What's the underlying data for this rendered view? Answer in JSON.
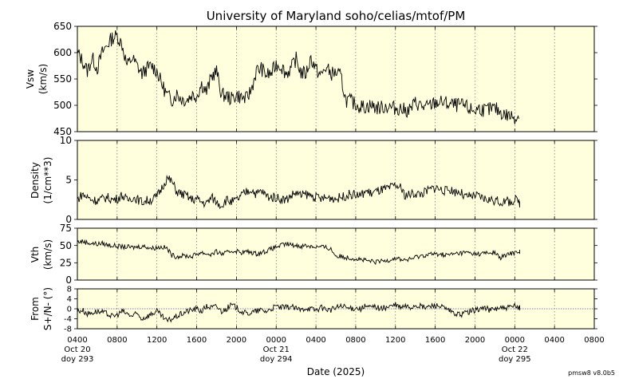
{
  "title": "University of Maryland  soho/celias/mtof/PM",
  "xlabel": "Date (2025)",
  "version": "pmsw8 v8.0b5",
  "colors": {
    "panel_bg": "#ffffdd",
    "line": "#000000",
    "grid": "#555555"
  },
  "x_ticks": [
    "0400",
    "0800",
    "1200",
    "1600",
    "2000",
    "0000",
    "0400",
    "0800",
    "1200",
    "1600",
    "2000",
    "0000",
    "0400",
    "0800"
  ],
  "day_labels": [
    {
      "tick": 0,
      "date": "Oct 20",
      "doy": "doy 293"
    },
    {
      "tick": 5,
      "date": "Oct 21",
      "doy": "doy 294"
    },
    {
      "tick": 11,
      "date": "Oct 22",
      "doy": "doy 295"
    }
  ],
  "chart_data": [
    {
      "type": "line",
      "ylabel": "Vsw",
      "yunit": "(km/s)",
      "ylim": [
        450,
        650
      ],
      "yticks": [
        "450",
        "500",
        "550",
        "600",
        "650"
      ],
      "x_range_hours": [
        4,
        56
      ],
      "series": [
        {
          "x": [
            4,
            4.5,
            5,
            5.5,
            6,
            6.5,
            7,
            7.5,
            8,
            8.5,
            9,
            9.5,
            10,
            10.5,
            11,
            11.5,
            12,
            12.5,
            13,
            13.5,
            14,
            14.5,
            15,
            15.5,
            16,
            16.5,
            17,
            17.5,
            18,
            18.5,
            19,
            19.5,
            20,
            20.5,
            21,
            21.5,
            22,
            22.5,
            23,
            23.5,
            24,
            24.5,
            25,
            25.5,
            26,
            26.5,
            27,
            27.5,
            28,
            28.5,
            29,
            29.5,
            30,
            30.5,
            31,
            31.5,
            32,
            32.5,
            33,
            33.5,
            34,
            34.5,
            35,
            35.5,
            36,
            36.5,
            37,
            37.5,
            38,
            38.5,
            39,
            39.5,
            40,
            40.5,
            41,
            41.5,
            42,
            42.5,
            43,
            43.5,
            44,
            44.5,
            45,
            45.5,
            46,
            46.5,
            47,
            47.5,
            48,
            48.5,
            49,
            49.5,
            50,
            50.5,
            51,
            51.5,
            52,
            52.5,
            53,
            53.5,
            54,
            54.5,
            55,
            55.5,
            56,
            56.5,
            57,
            57.5,
            58,
            58.5,
            59
          ],
          "y": [
            600,
            585,
            565,
            590,
            570,
            600,
            615,
            628,
            632,
            615,
            575,
            590,
            575,
            560,
            570,
            575,
            565,
            540,
            520,
            510,
            522,
            512,
            510,
            520,
            518,
            540,
            525,
            555,
            565,
            520,
            518,
            512,
            520,
            515,
            512,
            530,
            565,
            570,
            558,
            560,
            578,
            575,
            560,
            570,
            588,
            562,
            560,
            590,
            568,
            556,
            572,
            560,
            562,
            555,
            510,
            508,
            502,
            498,
            497,
            500,
            496,
            495,
            498,
            496,
            495,
            494,
            490,
            492,
            505,
            500,
            495,
            500,
            505,
            506,
            504,
            502,
            500,
            500,
            498,
            492,
            490,
            495,
            490,
            492,
            494,
            488,
            482,
            480,
            478,
            null,
            null,
            null,
            null,
            null,
            null,
            null,
            null,
            null,
            null,
            null,
            null,
            null,
            null,
            null,
            null,
            null,
            null,
            null,
            null,
            null,
            null
          ]
        }
      ]
    },
    {
      "type": "line",
      "ylabel": "Density",
      "yunit": "(1/cm**3)",
      "ylim": [
        0,
        10
      ],
      "yticks": [
        "0",
        "5",
        "10"
      ],
      "x_range_hours": [
        4,
        56
      ],
      "series": [
        {
          "x": [
            4,
            4.5,
            5,
            5.5,
            6,
            6.5,
            7,
            7.5,
            8,
            8.5,
            9,
            9.5,
            10,
            10.5,
            11,
            11.5,
            12,
            12.5,
            13,
            13.5,
            14,
            14.5,
            15,
            15.5,
            16,
            16.5,
            17,
            17.5,
            18,
            18.5,
            19,
            19.5,
            20,
            20.5,
            21,
            21.5,
            22,
            22.5,
            23,
            23.5,
            24,
            24.5,
            25,
            25.5,
            26,
            26.5,
            27,
            27.5,
            28,
            28.5,
            29,
            29.5,
            30,
            30.5,
            31,
            31.5,
            32,
            32.5,
            33,
            33.5,
            34,
            34.5,
            35,
            35.5,
            36,
            36.5,
            37,
            37.5,
            38,
            38.5,
            39,
            39.5,
            40,
            40.5,
            41,
            41.5,
            42,
            42.5,
            43,
            43.5,
            44,
            44.5,
            45,
            45.5,
            46,
            46.5,
            47,
            47.5,
            48,
            48.5
          ],
          "y": [
            2.5,
            3.2,
            2.8,
            2.5,
            2.4,
            2.6,
            2.8,
            2.5,
            2.6,
            3.1,
            2.4,
            2.8,
            2.6,
            2.2,
            2.4,
            2.5,
            2.9,
            4.0,
            5.2,
            4.8,
            3.5,
            3.2,
            3.0,
            2.5,
            2.6,
            2.2,
            2.0,
            2.8,
            2.2,
            1.8,
            2.5,
            2.2,
            2.4,
            3.0,
            3.5,
            3.8,
            3.2,
            3.6,
            3.0,
            2.8,
            2.8,
            2.6,
            2.5,
            3.0,
            3.4,
            3.0,
            3.2,
            3.0,
            2.8,
            2.6,
            2.7,
            2.8,
            2.6,
            2.8,
            3.0,
            3.2,
            3.1,
            3.0,
            3.6,
            3.3,
            3.5,
            3.7,
            3.8,
            4.0,
            4.3,
            4.0,
            3.0,
            3.2,
            3.3,
            3.2,
            3.5,
            3.8,
            4.1,
            3.8,
            3.6,
            3.8,
            3.5,
            3.5,
            2.8,
            2.9,
            3.0,
            2.8,
            2.6,
            2.5,
            2.4,
            2.2,
            2.3,
            2.2,
            2.5,
            2.1
          ]
        }
      ]
    },
    {
      "type": "line",
      "ylabel": "Vth",
      "yunit": "(km/s)",
      "ylim": [
        0,
        75
      ],
      "yticks": [
        "0",
        "25",
        "50",
        "75"
      ],
      "x_range_hours": [
        4,
        56
      ],
      "series": [
        {
          "x": [
            4,
            4.5,
            5,
            5.5,
            6,
            6.5,
            7,
            7.5,
            8,
            8.5,
            9,
            9.5,
            10,
            10.5,
            11,
            11.5,
            12,
            12.5,
            13,
            13.5,
            14,
            14.5,
            15,
            15.5,
            16,
            16.5,
            17,
            17.5,
            18,
            18.5,
            19,
            19.5,
            20,
            20.5,
            21,
            21.5,
            22,
            22.5,
            23,
            23.5,
            24,
            24.5,
            25,
            25.5,
            26,
            26.5,
            27,
            27.5,
            28,
            28.5,
            29,
            29.5,
            30,
            30.5,
            31,
            31.5,
            32,
            32.5,
            33,
            33.5,
            34,
            34.5,
            35,
            35.5,
            36,
            36.5,
            37,
            37.5,
            38,
            38.5,
            39,
            39.5,
            40,
            40.5,
            41,
            41.5,
            42,
            42.5,
            43,
            43.5,
            44,
            44.5,
            45,
            45.5,
            46,
            46.5,
            47,
            47.5,
            48,
            48.5
          ],
          "y": [
            55,
            56,
            54,
            53,
            52,
            53,
            51,
            50,
            49,
            48,
            48,
            47,
            48,
            49,
            48,
            46,
            47,
            48,
            46,
            36,
            34,
            35,
            35,
            34,
            38,
            40,
            38,
            37,
            41,
            38,
            39,
            42,
            42,
            40,
            41,
            40,
            38,
            40,
            42,
            45,
            48,
            50,
            52,
            51,
            50,
            49,
            50,
            49,
            48,
            48,
            47,
            45,
            35,
            34,
            33,
            32,
            31,
            30,
            28,
            27,
            26,
            27,
            28,
            30,
            32,
            30,
            29,
            30,
            33,
            35,
            36,
            38,
            37,
            38,
            36,
            37,
            38,
            39,
            40,
            39,
            38,
            38,
            39,
            39,
            40,
            32,
            35,
            38,
            40,
            42
          ]
        }
      ]
    },
    {
      "type": "line",
      "ylabel": "From",
      "yunit": "S+/N- (°)",
      "ylim": [
        -8,
        8
      ],
      "yticks": [
        "-8",
        "-4",
        "0",
        "4",
        "8"
      ],
      "x_range_hours": [
        4,
        56
      ],
      "series": [
        {
          "x": [
            4,
            4.5,
            5,
            5.5,
            6,
            6.5,
            7,
            7.5,
            8,
            8.5,
            9,
            9.5,
            10,
            10.5,
            11,
            11.5,
            12,
            12.5,
            13,
            13.5,
            14,
            14.5,
            15,
            15.5,
            16,
            16.5,
            17,
            17.5,
            18,
            18.5,
            19,
            19.5,
            20,
            20.5,
            21,
            21.5,
            22,
            22.5,
            23,
            23.5,
            24,
            24.5,
            25,
            25.5,
            26,
            26.5,
            27,
            27.5,
            28,
            28.5,
            29,
            29.5,
            30,
            30.5,
            31,
            31.5,
            32,
            32.5,
            33,
            33.5,
            34,
            34.5,
            35,
            35.5,
            36,
            36.5,
            37,
            37.5,
            38,
            38.5,
            39,
            39.5,
            40,
            40.5,
            41,
            41.5,
            42,
            42.5,
            43,
            43.5,
            44,
            44.5,
            45,
            45.5,
            46,
            46.5,
            47,
            47.5,
            48,
            48.5
          ],
          "y": [
            -1,
            -0.5,
            -2,
            -1.5,
            -1,
            -1.5,
            -2,
            -3,
            -2.5,
            -1,
            -2,
            -3,
            -2,
            -4,
            -3,
            -2,
            -1,
            -3,
            -5,
            -4,
            -3,
            -2,
            -1,
            -0.5,
            0,
            -1,
            1,
            0.5,
            1,
            -1,
            0,
            1.5,
            0.5,
            -1,
            -2,
            -1.5,
            -1,
            -0.5,
            -1,
            0,
            1,
            0.5,
            0.5,
            1,
            0,
            -0.5,
            0.5,
            0,
            -0.5,
            0.5,
            0,
            -0.5,
            0.5,
            1,
            0.5,
            0,
            0.5,
            0,
            1,
            0.5,
            1,
            0,
            0.5,
            1,
            1.5,
            0.5,
            1,
            0.5,
            1.5,
            1,
            0.5,
            1,
            1.5,
            1,
            0,
            -1,
            -2,
            -2.5,
            -1.5,
            -1,
            -0.5,
            0,
            0.5,
            -0.5,
            0,
            0.5,
            0,
            0.5,
            1,
            0.5
          ]
        }
      ]
    }
  ]
}
